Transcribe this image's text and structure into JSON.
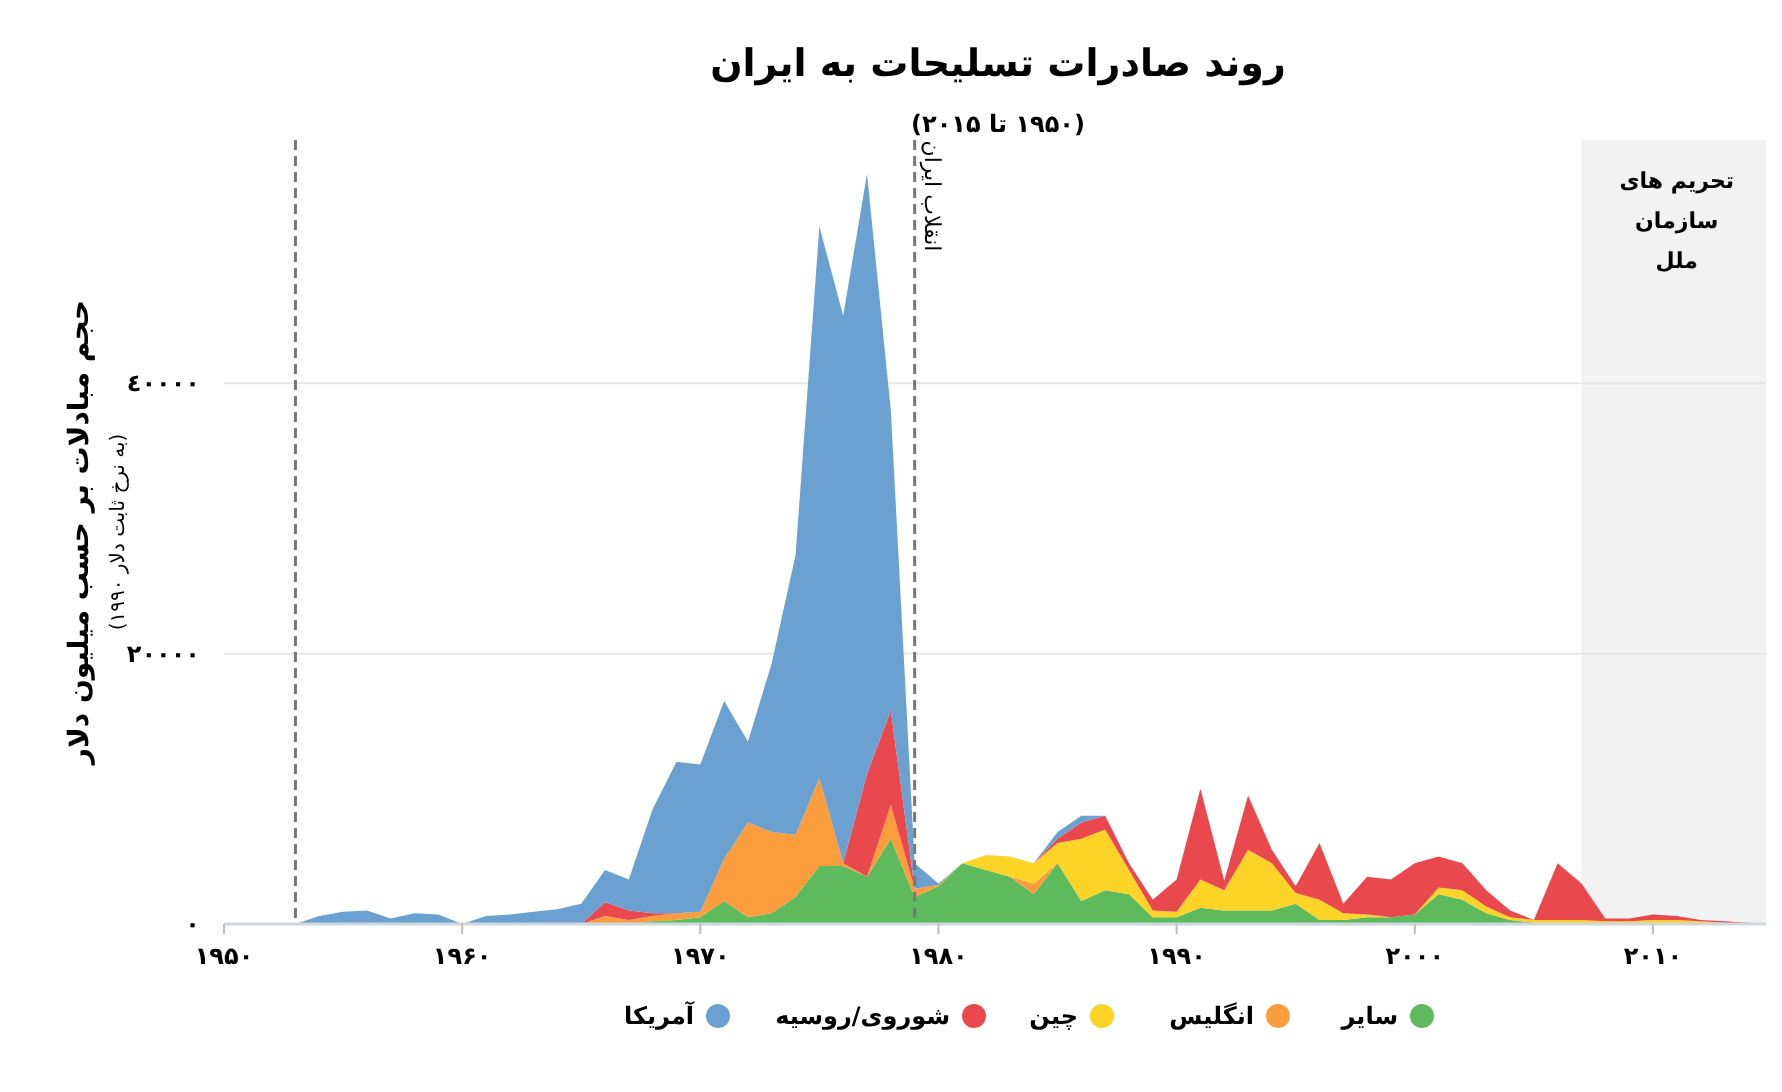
{
  "chart_data": {
    "type": "area",
    "stacked": true,
    "title": "روند صادرات تسلیحات به ایران",
    "subtitle": "(۱۹۵۰ تا ۲۰۱۵)",
    "ylabel": "حجم مبادلات بر حسب میلیون دلار",
    "annotations": [
      "(به نرخ ثابت دلار ۱۹۹۰)"
    ],
    "x": [
      1950,
      1951,
      1952,
      1953,
      1954,
      1955,
      1956,
      1957,
      1958,
      1959,
      1960,
      1961,
      1962,
      1963,
      1964,
      1965,
      1966,
      1967,
      1968,
      1969,
      1970,
      1971,
      1972,
      1973,
      1974,
      1975,
      1976,
      1977,
      1978,
      1979,
      1980,
      1981,
      1982,
      1983,
      1984,
      1985,
      1986,
      1987,
      1988,
      1989,
      1990,
      1991,
      1992,
      1993,
      1994,
      1995,
      1996,
      1997,
      1998,
      1999,
      2000,
      2001,
      2002,
      2003,
      2004,
      2005,
      2006,
      2007,
      2008,
      2009,
      2010,
      2011,
      2012,
      2013,
      2014,
      2015
    ],
    "series": [
      {
        "name": "سایر",
        "color": "#5dbb5d",
        "values": [
          null,
          null,
          null,
          null,
          null,
          null,
          null,
          null,
          null,
          null,
          null,
          null,
          null,
          null,
          null,
          null,
          null,
          0,
          200,
          300,
          500,
          1700,
          500,
          800,
          2000,
          4300,
          4300,
          3500,
          6300,
          2000,
          2800,
          4500,
          4000,
          3500,
          2200,
          4500,
          1700,
          2500,
          2200,
          500,
          500,
          1200,
          1000,
          1000,
          1000,
          1500,
          300,
          300,
          500,
          500,
          700,
          2200,
          1800,
          800,
          300,
          100,
          0,
          null,
          null,
          null,
          null,
          null,
          null,
          null,
          null,
          null
        ]
      },
      {
        "name": "انگلیس",
        "color": "#fb9d3c",
        "values": [
          null,
          null,
          null,
          null,
          null,
          null,
          null,
          null,
          null,
          null,
          null,
          null,
          null,
          null,
          null,
          0,
          600,
          300,
          400,
          500,
          400,
          3100,
          7000,
          6000,
          4600,
          6500,
          200,
          0,
          2500,
          600,
          100,
          0,
          0,
          0,
          800,
          0,
          null,
          null,
          null,
          null,
          null,
          null,
          null,
          null,
          null,
          null,
          null,
          null,
          null,
          null,
          null,
          null,
          null,
          null,
          null,
          null,
          null,
          null,
          null,
          null,
          null,
          null,
          null,
          null,
          null,
          null
        ]
      },
      {
        "name": "چین",
        "color": "#fcd428",
        "values": [
          null,
          null,
          null,
          null,
          null,
          null,
          null,
          null,
          null,
          null,
          null,
          null,
          null,
          null,
          null,
          null,
          null,
          null,
          null,
          null,
          null,
          null,
          null,
          null,
          null,
          null,
          null,
          null,
          null,
          null,
          null,
          0,
          1100,
          1500,
          1500,
          1500,
          4600,
          4500,
          1800,
          500,
          400,
          2100,
          1500,
          4500,
          3500,
          800,
          1500,
          500,
          200,
          0,
          0,
          500,
          700,
          500,
          200,
          200,
          300,
          300,
          200,
          200,
          300,
          300,
          200,
          100,
          0,
          null
        ]
      },
      {
        "name": "شوروی/روسیه",
        "color": "#e9484d",
        "values": [
          null,
          null,
          null,
          null,
          null,
          null,
          null,
          null,
          null,
          null,
          null,
          null,
          null,
          null,
          null,
          0,
          1000,
          700,
          200,
          0,
          0,
          0,
          0,
          0,
          0,
          0,
          0,
          7600,
          7000,
          0,
          0,
          0,
          0,
          0,
          0,
          300,
          1200,
          1000,
          500,
          800,
          2400,
          6700,
          700,
          4000,
          1000,
          500,
          4200,
          700,
          2800,
          2800,
          3800,
          2300,
          2000,
          1200,
          500,
          0,
          4200,
          2700,
          200,
          200,
          400,
          300,
          100,
          100,
          100,
          0
        ]
      },
      {
        "name": "آمریکا",
        "color": "#6ba1d0",
        "values": [
          0,
          0,
          0,
          0,
          600,
          900,
          1000,
          400,
          800,
          700,
          0,
          600,
          700,
          900,
          1100,
          1500,
          2400,
          2300,
          7700,
          11200,
          10900,
          11700,
          6000,
          12500,
          20700,
          40800,
          40500,
          44400,
          22200,
          1900,
          100,
          0,
          0,
          0,
          0,
          500,
          500,
          0,
          null,
          null,
          null,
          null,
          null,
          null,
          null,
          null,
          null,
          null,
          null,
          null,
          null,
          null,
          null,
          null,
          null,
          null,
          null,
          null,
          null,
          null,
          null,
          null,
          null,
          null,
          null,
          null
        ]
      }
    ],
    "xlim": [
      1950,
      2015
    ],
    "xticks": [
      {
        "value": 1950,
        "label": "۱۹۵۰"
      },
      {
        "value": 1960,
        "label": "۱۹۶۰"
      },
      {
        "value": 1970,
        "label": "۱۹۷۰"
      },
      {
        "value": 1980,
        "label": "۱۹۸۰"
      },
      {
        "value": 1990,
        "label": "۱۹۹۰"
      },
      {
        "value": 2000,
        "label": "۲۰۰۰"
      },
      {
        "value": 2010,
        "label": "۲۰۱۰"
      }
    ],
    "ylim": [
      0,
      58000
    ],
    "yticks": [
      {
        "value": 0,
        "label": "۰"
      },
      {
        "value": 20000,
        "label": "۲۰۰۰۰"
      },
      {
        "value": 40000,
        "label": "٤۰۰۰۰"
      }
    ],
    "grid": "y",
    "legend": "bottom",
    "ref_lines": [
      {
        "axis": "x",
        "value": 1953,
        "color": "#777777",
        "line_style": "dashed"
      },
      {
        "axis": "x",
        "value": 1979,
        "label": "انقلاب ایران",
        "color": "#777777",
        "line_style": "dashed"
      }
    ],
    "bands": [
      {
        "axis": "x",
        "from": 2007,
        "to": 2015,
        "label": "تحریم های سازمان ملل",
        "color": "#f2f2f2"
      }
    ]
  }
}
